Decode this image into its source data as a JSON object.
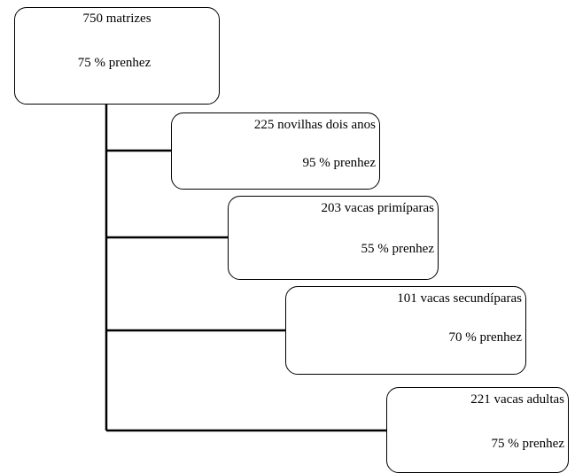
{
  "diagram": {
    "root": {
      "line1": "750 matrizes",
      "line2": "75 % prenhez"
    },
    "children": [
      {
        "line1": "225 novilhas dois anos",
        "line2": "95 % prenhez"
      },
      {
        "line1": "203 vacas primíparas",
        "line2": "55 % prenhez"
      },
      {
        "line1": "101 vacas secundíparas",
        "line2": "70 % prenhez"
      },
      {
        "line1": "221 vacas adultas",
        "line2": "75 % prenhez"
      }
    ]
  }
}
